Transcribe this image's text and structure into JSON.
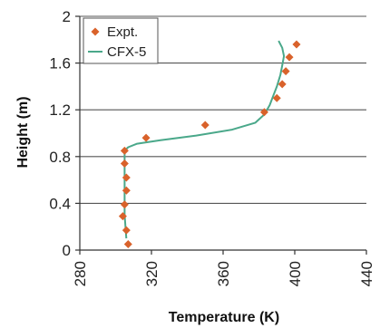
{
  "chart_data": {
    "type": "scatter",
    "xlabel": "Temperature (K)",
    "ylabel": "Height (m)",
    "xlim": [
      280,
      440
    ],
    "ylim": [
      0,
      2
    ],
    "xticks": [
      "280",
      "320",
      "360",
      "400",
      "440"
    ],
    "yticks": [
      "0",
      "0.4",
      "0.8",
      "1.2",
      "1.6",
      "2"
    ],
    "grid": "horizontal",
    "legend_position": "top-left",
    "series": [
      {
        "name": "Expt.",
        "kind": "markers",
        "color": "#d9622b",
        "points": [
          [
            307,
            0.05
          ],
          [
            306,
            0.17
          ],
          [
            304,
            0.29
          ],
          [
            305,
            0.39
          ],
          [
            306,
            0.51
          ],
          [
            306,
            0.62
          ],
          [
            305,
            0.74
          ],
          [
            305,
            0.85
          ],
          [
            317,
            0.96
          ],
          [
            350,
            1.07
          ],
          [
            383,
            1.18
          ],
          [
            390,
            1.3
          ],
          [
            393,
            1.42
          ],
          [
            395,
            1.53
          ],
          [
            397,
            1.65
          ],
          [
            401,
            1.76
          ]
        ]
      },
      {
        "name": "CFX-5",
        "kind": "line",
        "color": "#4aa88a",
        "points": [
          [
            306,
            0.1
          ],
          [
            305,
            0.3
          ],
          [
            305,
            0.5
          ],
          [
            305,
            0.7
          ],
          [
            305,
            0.85
          ],
          [
            307,
            0.88
          ],
          [
            312,
            0.91
          ],
          [
            325,
            0.94
          ],
          [
            345,
            0.98
          ],
          [
            365,
            1.03
          ],
          [
            378,
            1.09
          ],
          [
            383,
            1.16
          ],
          [
            386,
            1.24
          ],
          [
            388,
            1.32
          ],
          [
            390,
            1.4
          ],
          [
            392,
            1.5
          ],
          [
            393,
            1.58
          ],
          [
            394,
            1.66
          ],
          [
            393,
            1.73
          ],
          [
            391,
            1.79
          ]
        ]
      }
    ]
  }
}
